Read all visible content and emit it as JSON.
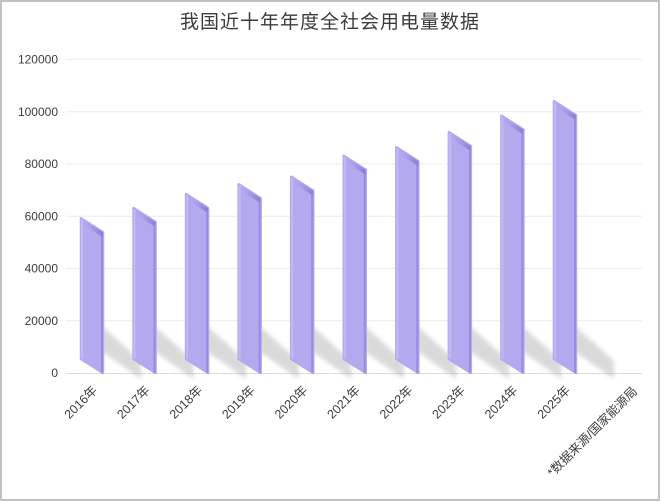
{
  "window": {
    "background": "#ffffff",
    "border_color": "#c1c1c1"
  },
  "chart_data": {
    "type": "bar",
    "title": "我国近十年年度全社会用电量数据",
    "categories": [
      "2016年",
      "2017年",
      "2018年",
      "2019年",
      "2020年",
      "2021年",
      "2022年",
      "2023年",
      "2024年",
      "2025年"
    ],
    "values": [
      59200,
      63100,
      68450,
      72250,
      75100,
      83100,
      86400,
      92200,
      98500,
      104000
    ],
    "xlabel": "",
    "ylabel": "",
    "ylim": [
      0,
      120000
    ],
    "ytick_step": 20000,
    "ytick_labels": [
      "0",
      "20000",
      "40000",
      "60000",
      "80000",
      "100000",
      "120000"
    ],
    "grid": "horizontal",
    "legend": "none",
    "bar_style": "3d-slanted-with-cast-shadow",
    "source_note": "*数据来源/国家能源局",
    "colors": {
      "bar_fill": "#b3a9ee",
      "bar_edge_dark": "#9486de",
      "bar_top_shade": "#8575d5",
      "bar_left_highlight": "#c9c2f3",
      "shadow": "#9e9e9e",
      "gridline": "#ececec",
      "axis_line": "#dcdcdc",
      "text": "#3d3d3d",
      "title_text": "#3c3c3c"
    }
  }
}
